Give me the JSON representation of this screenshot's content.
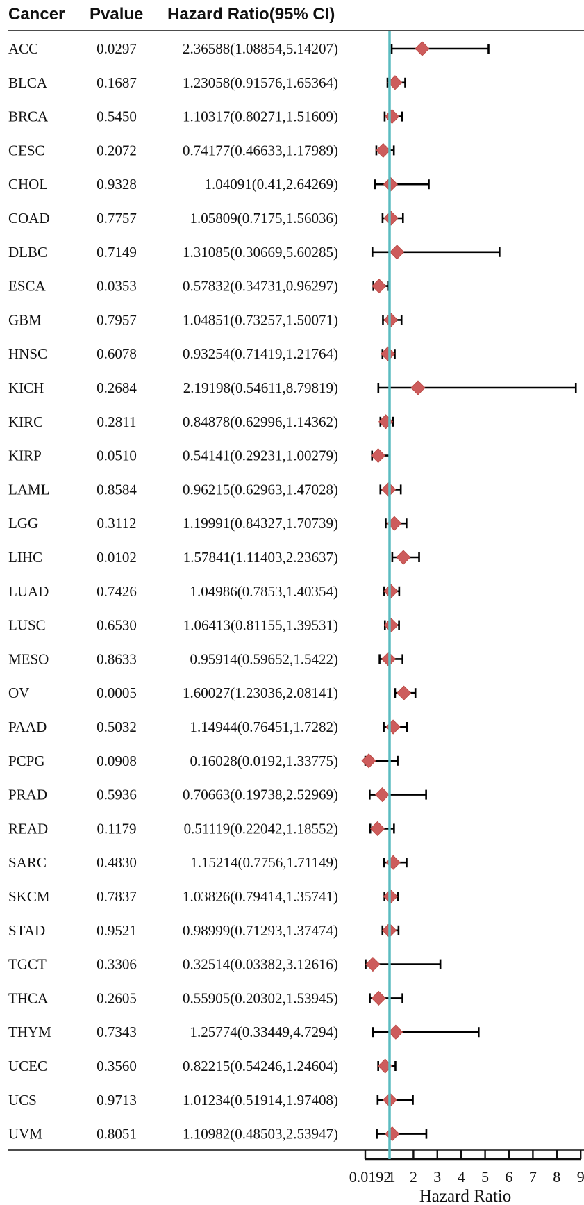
{
  "chart_data": {
    "type": "forest",
    "columns": [
      "Cancer",
      "Pvalue",
      "Hazard Ratio(95% CI)"
    ],
    "xlabel": "Hazard Ratio",
    "xlim": [
      0.0192,
      9
    ],
    "x_ticks": [
      "0.0192",
      "1",
      "2",
      "3",
      "4",
      "5",
      "6",
      "7",
      "8",
      "9"
    ],
    "reference_line": 1,
    "colors": {
      "marker": "#cd5c5c",
      "reference": "#5bbcc0",
      "whisker": "#000000"
    },
    "rows": [
      {
        "cancer": "ACC",
        "pvalue": "0.0297",
        "hr_text": "2.36588(1.08854,5.14207)",
        "hr": 2.36588,
        "low": 1.08854,
        "high": 5.14207
      },
      {
        "cancer": "BLCA",
        "pvalue": "0.1687",
        "hr_text": "1.23058(0.91576,1.65364)",
        "hr": 1.23058,
        "low": 0.91576,
        "high": 1.65364
      },
      {
        "cancer": "BRCA",
        "pvalue": "0.5450",
        "hr_text": "1.10317(0.80271,1.51609)",
        "hr": 1.10317,
        "low": 0.80271,
        "high": 1.51609
      },
      {
        "cancer": "CESC",
        "pvalue": "0.2072",
        "hr_text": "0.74177(0.46633,1.17989)",
        "hr": 0.74177,
        "low": 0.46633,
        "high": 1.17989
      },
      {
        "cancer": "CHOL",
        "pvalue": "0.9328",
        "hr_text": "1.04091(0.41,2.64269)",
        "hr": 1.04091,
        "low": 0.41,
        "high": 2.64269
      },
      {
        "cancer": "COAD",
        "pvalue": "0.7757",
        "hr_text": "1.05809(0.7175,1.56036)",
        "hr": 1.05809,
        "low": 0.7175,
        "high": 1.56036
      },
      {
        "cancer": "DLBC",
        "pvalue": "0.7149",
        "hr_text": "1.31085(0.30669,5.60285)",
        "hr": 1.31085,
        "low": 0.30669,
        "high": 5.60285
      },
      {
        "cancer": "ESCA",
        "pvalue": "0.0353",
        "hr_text": "0.57832(0.34731,0.96297)",
        "hr": 0.57832,
        "low": 0.34731,
        "high": 0.96297
      },
      {
        "cancer": "GBM",
        "pvalue": "0.7957",
        "hr_text": "1.04851(0.73257,1.50071)",
        "hr": 1.04851,
        "low": 0.73257,
        "high": 1.50071
      },
      {
        "cancer": "HNSC",
        "pvalue": "0.6078",
        "hr_text": "0.93254(0.71419,1.21764)",
        "hr": 0.93254,
        "low": 0.71419,
        "high": 1.21764
      },
      {
        "cancer": "KICH",
        "pvalue": "0.2684",
        "hr_text": "2.19198(0.54611,8.79819)",
        "hr": 2.19198,
        "low": 0.54611,
        "high": 8.79819
      },
      {
        "cancer": "KIRC",
        "pvalue": "0.2811",
        "hr_text": "0.84878(0.62996,1.14362)",
        "hr": 0.84878,
        "low": 0.62996,
        "high": 1.14362
      },
      {
        "cancer": "KIRP",
        "pvalue": "0.0510",
        "hr_text": "0.54141(0.29231,1.00279)",
        "hr": 0.54141,
        "low": 0.29231,
        "high": 1.00279
      },
      {
        "cancer": "LAML",
        "pvalue": "0.8584",
        "hr_text": "0.96215(0.62963,1.47028)",
        "hr": 0.96215,
        "low": 0.62963,
        "high": 1.47028
      },
      {
        "cancer": "LGG",
        "pvalue": "0.3112",
        "hr_text": "1.19991(0.84327,1.70739)",
        "hr": 1.19991,
        "low": 0.84327,
        "high": 1.70739
      },
      {
        "cancer": "LIHC",
        "pvalue": "0.0102",
        "hr_text": "1.57841(1.11403,2.23637)",
        "hr": 1.57841,
        "low": 1.11403,
        "high": 2.23637
      },
      {
        "cancer": "LUAD",
        "pvalue": "0.7426",
        "hr_text": "1.04986(0.7853,1.40354)",
        "hr": 1.04986,
        "low": 0.7853,
        "high": 1.40354
      },
      {
        "cancer": "LUSC",
        "pvalue": "0.6530",
        "hr_text": "1.06413(0.81155,1.39531)",
        "hr": 1.06413,
        "low": 0.81155,
        "high": 1.39531
      },
      {
        "cancer": "MESO",
        "pvalue": "0.8633",
        "hr_text": "0.95914(0.59652,1.5422)",
        "hr": 0.95914,
        "low": 0.59652,
        "high": 1.5422
      },
      {
        "cancer": "OV",
        "pvalue": "0.0005",
        "hr_text": "1.60027(1.23036,2.08141)",
        "hr": 1.60027,
        "low": 1.23036,
        "high": 2.08141
      },
      {
        "cancer": "PAAD",
        "pvalue": "0.5032",
        "hr_text": "1.14944(0.76451,1.7282)",
        "hr": 1.14944,
        "low": 0.76451,
        "high": 1.7282
      },
      {
        "cancer": "PCPG",
        "pvalue": "0.0908",
        "hr_text": "0.16028(0.0192,1.33775)",
        "hr": 0.16028,
        "low": 0.0192,
        "high": 1.33775
      },
      {
        "cancer": "PRAD",
        "pvalue": "0.5936",
        "hr_text": "0.70663(0.19738,2.52969)",
        "hr": 0.70663,
        "low": 0.19738,
        "high": 2.52969
      },
      {
        "cancer": "READ",
        "pvalue": "0.1179",
        "hr_text": "0.51119(0.22042,1.18552)",
        "hr": 0.51119,
        "low": 0.22042,
        "high": 1.18552
      },
      {
        "cancer": "SARC",
        "pvalue": "0.4830",
        "hr_text": "1.15214(0.7756,1.71149)",
        "hr": 1.15214,
        "low": 0.7756,
        "high": 1.71149
      },
      {
        "cancer": "SKCM",
        "pvalue": "0.7837",
        "hr_text": "1.03826(0.79414,1.35741)",
        "hr": 1.03826,
        "low": 0.79414,
        "high": 1.35741
      },
      {
        "cancer": "STAD",
        "pvalue": "0.9521",
        "hr_text": "0.98999(0.71293,1.37474)",
        "hr": 0.98999,
        "low": 0.71293,
        "high": 1.37474
      },
      {
        "cancer": "TGCT",
        "pvalue": "0.3306",
        "hr_text": "0.32514(0.03382,3.12616)",
        "hr": 0.32514,
        "low": 0.03382,
        "high": 3.12616
      },
      {
        "cancer": "THCA",
        "pvalue": "0.2605",
        "hr_text": "0.55905(0.20302,1.53945)",
        "hr": 0.55905,
        "low": 0.20302,
        "high": 1.53945
      },
      {
        "cancer": "THYM",
        "pvalue": "0.7343",
        "hr_text": "1.25774(0.33449,4.7294)",
        "hr": 1.25774,
        "low": 0.33449,
        "high": 4.7294
      },
      {
        "cancer": "UCEC",
        "pvalue": "0.3560",
        "hr_text": "0.82215(0.54246,1.24604)",
        "hr": 0.82215,
        "low": 0.54246,
        "high": 1.24604
      },
      {
        "cancer": "UCS",
        "pvalue": "0.9713",
        "hr_text": "1.01234(0.51914,1.97408)",
        "hr": 1.01234,
        "low": 0.51914,
        "high": 1.97408
      },
      {
        "cancer": "UVM",
        "pvalue": "0.8051",
        "hr_text": "1.10982(0.48503,2.53947)",
        "hr": 1.10982,
        "low": 0.48503,
        "high": 2.53947
      }
    ]
  }
}
